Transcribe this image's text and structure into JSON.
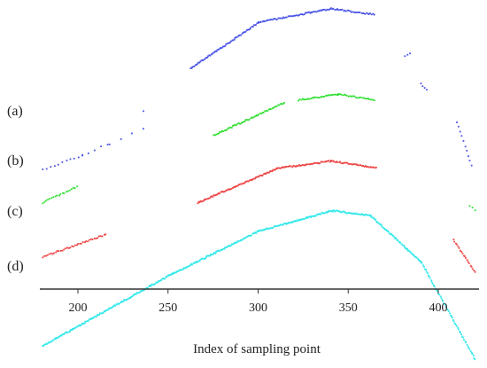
{
  "chart_data": {
    "type": "scatter",
    "title": "",
    "xlabel": "Index of sampling point",
    "ylabel": "",
    "xlim": [
      180,
      420
    ],
    "xticks": [
      200,
      250,
      300,
      350,
      400
    ],
    "xtick_labels": [
      "200",
      "250",
      "300",
      "350",
      "400"
    ],
    "grid": false,
    "legend": "none",
    "curve_labels": [
      "(a)",
      "(b)",
      "(c)",
      "(d)"
    ],
    "series": [
      {
        "id": "a",
        "color": "#4b55e6",
        "segments": [
          {
            "x_start": 180,
            "x_end": 202,
            "points": 11,
            "y_start": 0.25,
            "y_end": 0.66
          },
          {
            "x_start": 202,
            "x_end": 216,
            "points": 5,
            "y_start": 0.66,
            "y_end": 0.99
          },
          {
            "x_start": 217,
            "x_end": 236,
            "points": 4,
            "y_start": 1.0,
            "y_end": 1.45
          },
          {
            "x_start": 236,
            "x_end": 236,
            "points": 1,
            "y_start": 1.95,
            "y_end": 1.95
          },
          {
            "x_start": 262,
            "x_end": 300,
            "points": 70,
            "y_start": 3.2,
            "y_end": 4.55
          },
          {
            "x_start": 300,
            "x_end": 340,
            "points": 60,
            "y_start": 4.55,
            "y_end": 4.95
          },
          {
            "x_start": 340,
            "x_end": 364,
            "points": 35,
            "y_start": 4.95,
            "y_end": 4.78
          },
          {
            "x_start": 381,
            "x_end": 384,
            "points": 3,
            "y_start": 3.55,
            "y_end": 3.65
          },
          {
            "x_start": 390,
            "x_end": 393,
            "points": 4,
            "y_start": 2.75,
            "y_end": 2.6
          },
          {
            "x_start": 410,
            "x_end": 418,
            "points": 10,
            "y_start": 1.65,
            "y_end": 0.35
          }
        ]
      },
      {
        "id": "b",
        "color": "#33e033",
        "segments": [
          {
            "x_start": 180,
            "x_end": 199,
            "points": 20,
            "y_start": -0.72,
            "y_end": -0.25
          },
          {
            "x_start": 275,
            "x_end": 314,
            "points": 60,
            "y_start": 1.25,
            "y_end": 2.2
          },
          {
            "x_start": 322,
            "x_end": 344,
            "points": 30,
            "y_start": 2.28,
            "y_end": 2.45
          },
          {
            "x_start": 344,
            "x_end": 364,
            "points": 25,
            "y_start": 2.45,
            "y_end": 2.28
          },
          {
            "x_start": 417,
            "x_end": 420,
            "points": 3,
            "y_start": -0.8,
            "y_end": -0.95
          }
        ]
      },
      {
        "id": "c",
        "color": "#ee4444",
        "segments": [
          {
            "x_start": 180,
            "x_end": 215,
            "points": 40,
            "y_start": -2.3,
            "y_end": -1.65
          },
          {
            "x_start": 266,
            "x_end": 310,
            "points": 80,
            "y_start": -0.72,
            "y_end": 0.28
          },
          {
            "x_start": 310,
            "x_end": 340,
            "points": 50,
            "y_start": 0.28,
            "y_end": 0.5
          },
          {
            "x_start": 340,
            "x_end": 365,
            "points": 40,
            "y_start": 0.5,
            "y_end": 0.3
          },
          {
            "x_start": 408,
            "x_end": 420,
            "points": 20,
            "y_start": -1.8,
            "y_end": -2.75
          }
        ]
      },
      {
        "id": "d",
        "color": "#33e8ea",
        "segments": [
          {
            "x_start": 180,
            "x_end": 250,
            "points": 140,
            "y_start": -4.9,
            "y_end": -2.85
          },
          {
            "x_start": 250,
            "x_end": 300,
            "points": 100,
            "y_start": -2.85,
            "y_end": -1.55
          },
          {
            "x_start": 300,
            "x_end": 341,
            "points": 80,
            "y_start": -1.55,
            "y_end": -0.95
          },
          {
            "x_start": 341,
            "x_end": 362,
            "points": 40,
            "y_start": -0.95,
            "y_end": -1.1
          },
          {
            "x_start": 362,
            "x_end": 390,
            "points": 60,
            "y_start": -1.1,
            "y_end": -2.45
          },
          {
            "x_start": 390,
            "x_end": 420,
            "points": 60,
            "y_start": -2.45,
            "y_end": -5.3
          }
        ]
      }
    ]
  }
}
